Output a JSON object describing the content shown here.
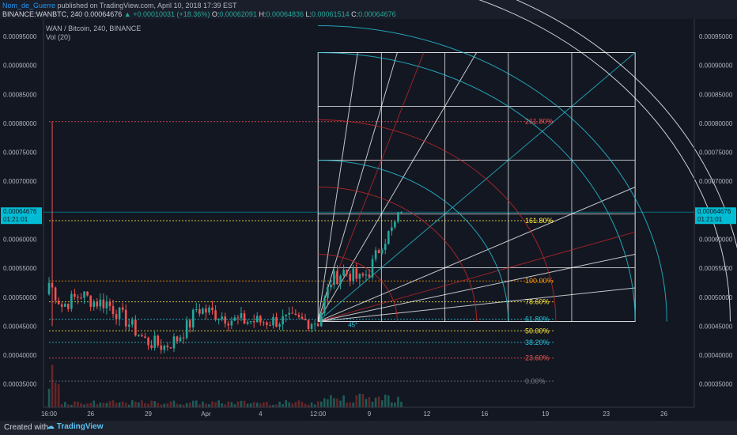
{
  "header": {
    "user": "Nom_de_Guerre",
    "published": " published on TradingView.com, April 10, 2018 17:39 EST",
    "symbol": "BINANCE:WANBTC, 240",
    "last": "0.00064676",
    "change": "+0.00010031 (+18.36%)",
    "o_label": "O:",
    "o": "0.00062091",
    "h_label": "H:",
    "h": "0.00064836",
    "l_label": "L:",
    "l": "0.00061514",
    "c_label": "C:",
    "c": "0.00064676"
  },
  "legend": {
    "title": "WAN / Bitcoin, 240, BINANCE",
    "indicator": "Vol (20)"
  },
  "price_tag": {
    "price": "0.00064676",
    "countdown": "01:21:01"
  },
  "footer": {
    "created": "Created with",
    "brand": "TradingView"
  },
  "colors": {
    "bg": "#131722",
    "up": "#26a69a",
    "down": "#ef5350",
    "accent": "#00bcd4",
    "fib_red": "#c62828",
    "fib_white": "#ffffff"
  },
  "chart_data": {
    "type": "candlestick",
    "title": "WAN / Bitcoin, 240, BINANCE",
    "ylim": [
      0.00031,
      0.00098
    ],
    "y_ticks": [
      "0.00035000",
      "0.00040000",
      "0.00045000",
      "0.00050000",
      "0.00055000",
      "0.00060000",
      "0.00065000",
      "0.00070000",
      "0.00075000",
      "0.00080000",
      "0.00085000",
      "0.00090000",
      "0.00095000"
    ],
    "y_tick_values": [
      0.00035,
      0.0004,
      0.00045,
      0.0005,
      0.00055,
      0.0006,
      0.00065,
      0.0007,
      0.00075,
      0.0008,
      0.00085,
      0.0009,
      0.00095
    ],
    "x_ticks": [
      "16:00",
      "26",
      "29",
      "Apr",
      "4",
      "12:00",
      "9",
      "12",
      "16",
      "19",
      "23",
      "26"
    ],
    "x_tick_index": [
      0,
      13,
      31,
      49,
      66,
      84,
      100,
      118,
      136,
      155,
      174,
      192
    ],
    "candles_count": 115,
    "close_price": 0.00064676,
    "fib_levels": [
      {
        "label": "0.00%",
        "price": 0.000355,
        "color": "#787b86"
      },
      {
        "label": "23.60%",
        "price": 0.000395,
        "color": "#ef5350"
      },
      {
        "label": "38.20%",
        "price": 0.000422,
        "color": "#26c6da"
      },
      {
        "label": "50.00%",
        "price": 0.000442,
        "color": "#ffeb3b"
      },
      {
        "label": "61.80%",
        "price": 0.000462,
        "color": "#26c6da"
      },
      {
        "label": "78.60%",
        "price": 0.000492,
        "color": "#ffeb3b"
      },
      {
        "label": "100.00%",
        "price": 0.000528,
        "color": "#ff9800"
      },
      {
        "label": "161.80%",
        "price": 0.000632,
        "color": "#ffeb3b"
      },
      {
        "label": "261.80%",
        "price": 0.000803,
        "color": "#ef5350"
      }
    ],
    "gann_angle_label": "45°",
    "gann_origin": {
      "index": 84,
      "price": 0.000458
    },
    "gann_box_end": {
      "index": 183,
      "price": 0.000922
    },
    "grid": false,
    "legend_position": "top-left"
  }
}
